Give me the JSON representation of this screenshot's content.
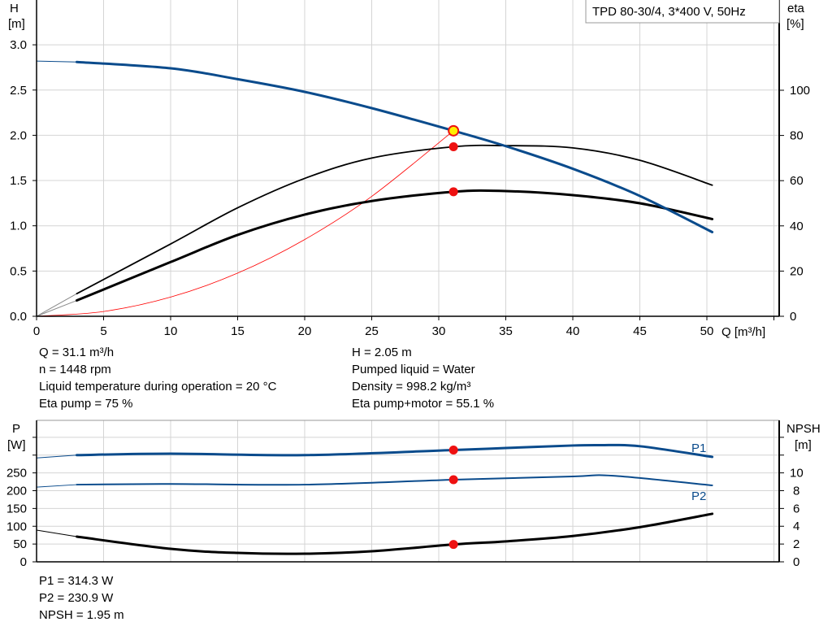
{
  "chart_data": [
    {
      "type": "line",
      "title": "TPD 80-30/4, 3*400 V, 50Hz",
      "xlabel": "Q [m³/h]",
      "ylabel_left": [
        "H",
        "[m]"
      ],
      "ylabel_right": [
        "eta",
        "[%]"
      ],
      "xlim": [
        0,
        55
      ],
      "ylim_left": [
        0,
        3.5
      ],
      "ylim_right": [
        0,
        140
      ],
      "grid": true,
      "x_ticks": [
        "0",
        "5",
        "10",
        "15",
        "20",
        "25",
        "30",
        "35",
        "40",
        "45",
        "50"
      ],
      "y_ticks_left": [
        "0.0",
        "0.5",
        "1.0",
        "1.5",
        "2.0",
        "2.5",
        "3.0"
      ],
      "y_ticks_right": [
        "0",
        "20",
        "40",
        "60",
        "80",
        "100"
      ],
      "series": [
        {
          "key": "H",
          "axis": "left",
          "color": "#0a4b8c",
          "x": [
            0,
            3,
            10,
            15,
            20,
            25,
            31.1,
            35,
            40,
            45,
            50.4
          ],
          "y": [
            2.82,
            2.81,
            2.74,
            2.62,
            2.48,
            2.3,
            2.05,
            1.88,
            1.63,
            1.33,
            0.93
          ]
        },
        {
          "key": "eta_pump",
          "axis": "right",
          "color": "#000000",
          "x": [
            0,
            3,
            10,
            15,
            20,
            25,
            31.1,
            35,
            40,
            45,
            50.4
          ],
          "y": [
            0,
            10,
            32,
            48,
            61,
            70,
            75,
            75.5,
            74.5,
            69,
            58
          ]
        },
        {
          "key": "eta_pump_motor",
          "axis": "right",
          "color": "#000000",
          "x": [
            0,
            3,
            10,
            15,
            20,
            25,
            31.1,
            35,
            40,
            45,
            50.4
          ],
          "y": [
            0,
            7,
            24,
            36,
            45,
            51,
            55.1,
            55.4,
            53.6,
            50,
            43
          ]
        },
        {
          "key": "system_curve",
          "axis": "left",
          "color": "#ff0000",
          "x": [
            0,
            5,
            10,
            15,
            20,
            25,
            31.1
          ],
          "y": [
            0,
            0.053,
            0.212,
            0.477,
            0.848,
            1.325,
            2.05
          ]
        }
      ],
      "duty_point": {
        "Q": 31.1,
        "H": 2.05,
        "eta_pump": 75,
        "eta_pump_motor": 55.1
      }
    },
    {
      "type": "line",
      "xlim": [
        0,
        55
      ],
      "ylabel_left": [
        "P",
        "[W]"
      ],
      "ylabel_right": [
        "NPSH",
        "[m]"
      ],
      "ylim_left": [
        0,
        400
      ],
      "ylim_right": [
        0,
        16
      ],
      "grid": true,
      "y_ticks_left": [
        "0",
        "50",
        "100",
        "150",
        "200",
        "250"
      ],
      "y_ticks_right": [
        "0",
        "2",
        "4",
        "6",
        "8",
        "10"
      ],
      "series": [
        {
          "key": "P1",
          "name": "P1",
          "axis": "left",
          "color": "#0a4b8c",
          "x": [
            0,
            3,
            10,
            20,
            31.1,
            35,
            40,
            42,
            45,
            50.4
          ],
          "y": [
            292,
            300,
            304,
            300,
            314.3,
            320,
            327,
            328,
            325,
            295
          ]
        },
        {
          "key": "P2",
          "name": "P2",
          "axis": "left",
          "color": "#0a4b8c",
          "x": [
            0,
            3,
            10,
            20,
            31.1,
            40,
            43,
            50.4
          ],
          "y": [
            210,
            217,
            219,
            217,
            230.9,
            240,
            242,
            215
          ]
        },
        {
          "key": "NPSH",
          "axis": "right",
          "color": "#000000",
          "x": [
            0,
            3,
            10,
            15,
            20,
            25,
            31.1,
            35,
            40,
            45,
            50.4
          ],
          "y": [
            3.56,
            2.83,
            1.46,
            1.0,
            0.91,
            1.19,
            1.95,
            2.3,
            2.9,
            3.9,
            5.4
          ]
        }
      ],
      "duty_point": {
        "Q": 31.1,
        "P1": 314.3,
        "P2": 230.9,
        "NPSH": 1.95
      }
    }
  ],
  "info_left": [
    "Q = 31.1 m³/h",
    "n = 1448 rpm",
    "Liquid temperature during operation = 20 °C",
    "Eta pump = 75 %"
  ],
  "info_right": [
    "H = 2.05 m",
    "Pumped liquid = Water",
    "Density = 998.2 kg/m³",
    "Eta pump+motor = 55.1 %"
  ],
  "info_bottom": [
    "P1 = 314.3 W",
    "P2 = 230.9 W",
    "NPSH = 1.95 m"
  ],
  "colors": {
    "blue": "#0a4b8c",
    "duty": "#ee1111",
    "grid": "#d4d4d4",
    "highlight": "#ffee00"
  }
}
